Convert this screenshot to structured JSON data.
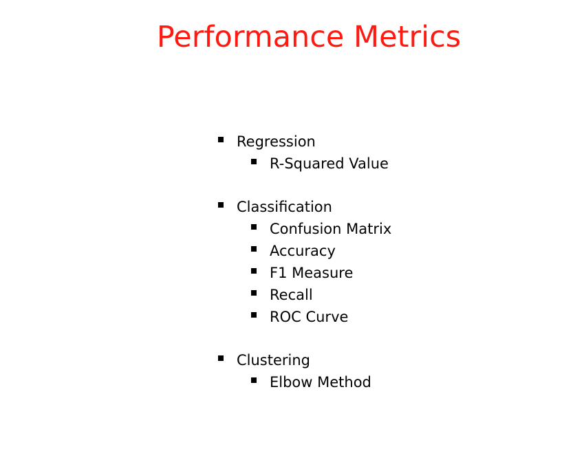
{
  "slide": {
    "title": "Performance Metrics",
    "title_color": "#fe1a10",
    "bullet_icon": "square-bullet",
    "groups": [
      {
        "label": "Regression",
        "items": [
          "R-Squared Value"
        ]
      },
      {
        "label": "Classification",
        "items": [
          "Confusion Matrix",
          "Accuracy",
          "F1 Measure",
          "Recall",
          "ROC Curve"
        ]
      },
      {
        "label": "Clustering",
        "items": [
          "Elbow Method"
        ]
      }
    ]
  }
}
